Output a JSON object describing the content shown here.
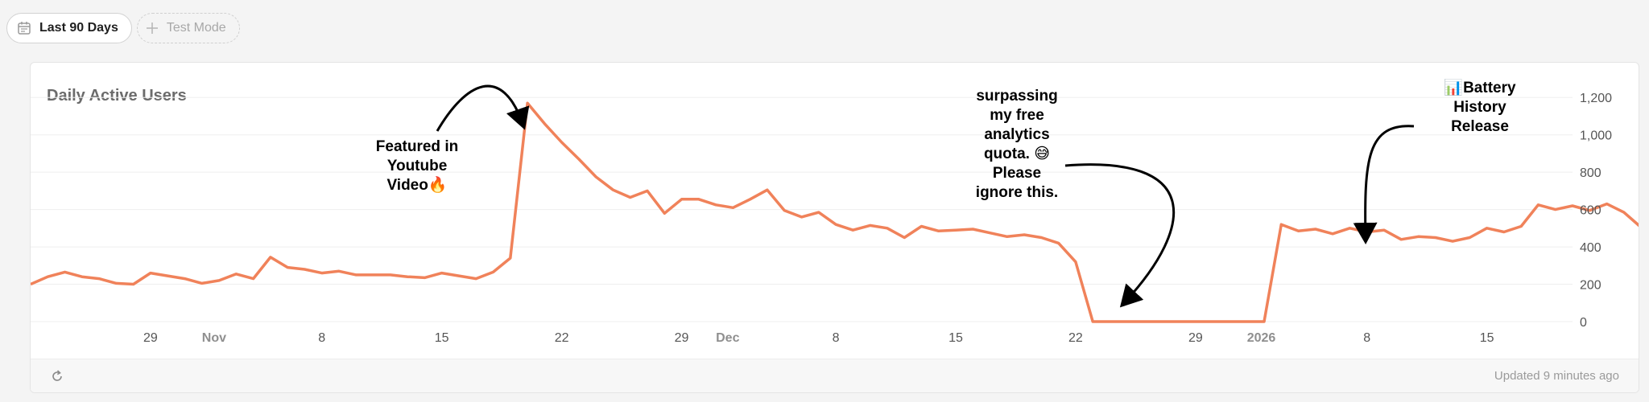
{
  "toolbar": {
    "date_range_label": "Last 90 Days",
    "test_mode_label": "Test Mode"
  },
  "card": {
    "title": "Daily Active Users",
    "updated": "Updated 9 minutes ago"
  },
  "annotations": {
    "youtube": "Featured in\nYoutube\nVideo🔥",
    "quota": "surpassing\nmy free\nanalytics\nquota. 😅\nPlease\nignore this.",
    "battery": "📊Battery\nHistory\nRelease"
  },
  "colors": {
    "line": "#f0825a",
    "background": "#f4f4f4"
  },
  "chart_data": {
    "type": "line",
    "title": "Daily Active Users",
    "y_ticks": [
      "0",
      "200",
      "400",
      "600",
      "800",
      "1,000",
      "1,200"
    ],
    "ylim": [
      0,
      1300
    ],
    "y_axis_position": "right",
    "grid": true,
    "x_tick_labels": [
      {
        "label": "29",
        "kind": "day"
      },
      {
        "label": "Nov",
        "kind": "month"
      },
      {
        "label": "8",
        "kind": "day"
      },
      {
        "label": "15",
        "kind": "day"
      },
      {
        "label": "22",
        "kind": "day"
      },
      {
        "label": "29",
        "kind": "day"
      },
      {
        "label": "Dec",
        "kind": "month"
      },
      {
        "label": "8",
        "kind": "day"
      },
      {
        "label": "15",
        "kind": "day"
      },
      {
        "label": "22",
        "kind": "day"
      },
      {
        "label": "29",
        "kind": "day"
      },
      {
        "label": "2026",
        "kind": "month"
      },
      {
        "label": "8",
        "kind": "day"
      },
      {
        "label": "15",
        "kind": "day"
      }
    ],
    "x_tick_dates": [
      "2025-10-29",
      "2025-11-01",
      "2025-11-08",
      "2025-11-15",
      "2025-11-22",
      "2025-11-29",
      "2025-12-01",
      "2025-12-08",
      "2025-12-15",
      "2025-12-22",
      "2025-12-29",
      "2026-01-01",
      "2026-01-08",
      "2026-01-15"
    ],
    "x_range": [
      "2025-10-22",
      "2026-01-20"
    ],
    "series": [
      {
        "start": "2025-10-22",
        "values": [
          200,
          240,
          265,
          240,
          230,
          205,
          200,
          260,
          245,
          230,
          205,
          220,
          255,
          230,
          345,
          290,
          280,
          260,
          270,
          250,
          250,
          250,
          240,
          235,
          260,
          245,
          230,
          265,
          340,
          1170,
          1060,
          960,
          870,
          775,
          705,
          665,
          700,
          580,
          655,
          655,
          625,
          610,
          655,
          705,
          595,
          560,
          585,
          520,
          490,
          515,
          500,
          450,
          510,
          485,
          490,
          495,
          475,
          455,
          465,
          450,
          420,
          320,
          0,
          0,
          0,
          0,
          0,
          0,
          0,
          0,
          0,
          0,
          0,
          520,
          485,
          495,
          470,
          500,
          480,
          490,
          440,
          455,
          450,
          430,
          450,
          500,
          480,
          510,
          625,
          600,
          620,
          595,
          630,
          585,
          505
        ]
      }
    ],
    "annotations": [
      {
        "date": "2025-11-20",
        "text": "Featured in Youtube Video🔥"
      },
      {
        "date": "2025-12-24",
        "text": "surpassing my free analytics quota. 😅 Please ignore this."
      },
      {
        "date": "2026-01-08",
        "text": "📊Battery History Release"
      }
    ]
  }
}
